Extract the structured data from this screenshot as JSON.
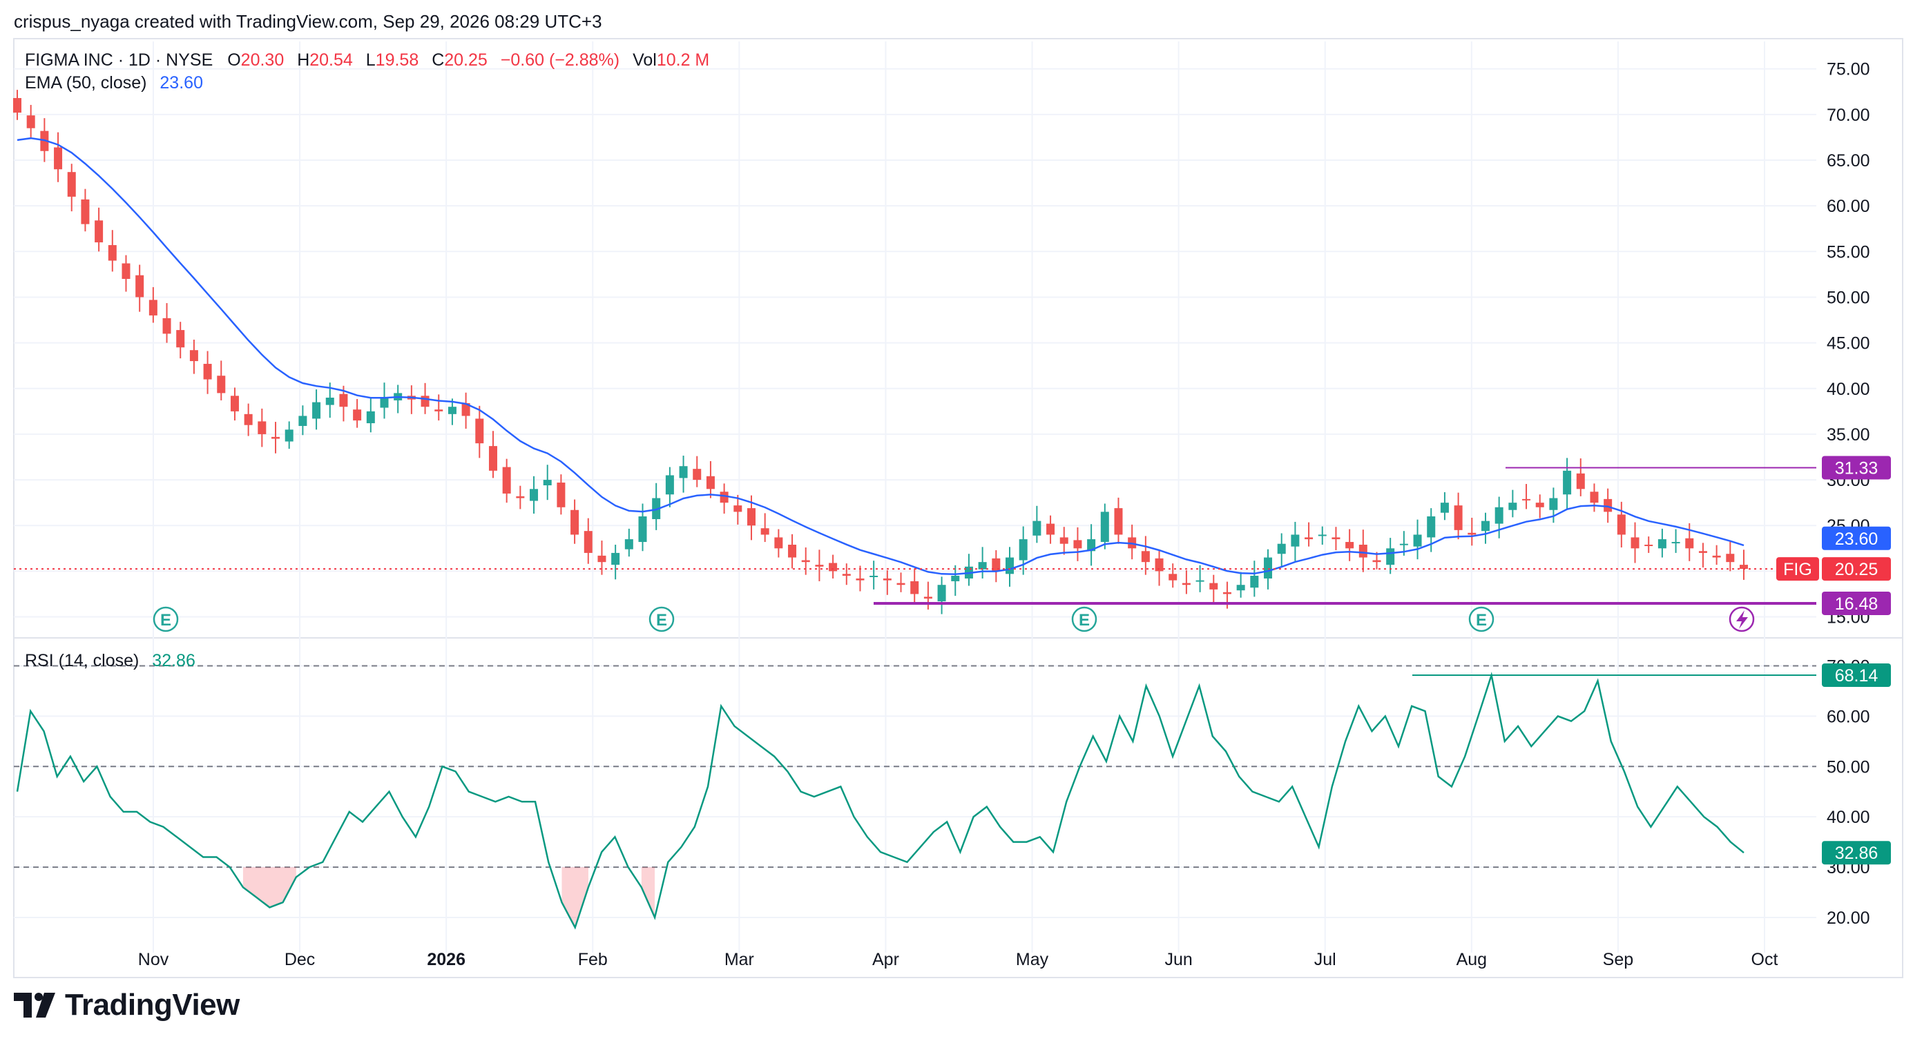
{
  "header": {
    "credit": "crispus_nyaga created with TradingView.com, Sep 29, 2026 08:29 UTC+3"
  },
  "legend": {
    "symbol": "FIGMA INC · 1D · NYSE",
    "o_label": "O",
    "o_value": "20.30",
    "h_label": "H",
    "h_value": "20.54",
    "l_label": "L",
    "l_value": "19.58",
    "c_label": "C",
    "c_value": "20.25",
    "change": "−0.60 (−2.88%)",
    "vol_label": "Vol",
    "vol_value": "10.2 M",
    "ema_label": "EMA (50, close)",
    "ema_value": "23.60",
    "rsi_label": "RSI (14, close)",
    "rsi_value": "32.86"
  },
  "colors": {
    "up": "#26a69a",
    "down": "#ef5350",
    "ema": "#2962ff",
    "rsi": "#089981",
    "level": "#9c27b0",
    "ticker_bg": "#f23645",
    "rsi_badge": "#089981",
    "grid": "#f0f3fa",
    "text": "#131722"
  },
  "chart_data": [
    {
      "type": "candlestick",
      "title": "FIGMA INC · 1D · NYSE",
      "ylim": [
        13,
        78
      ],
      "y_ticks": [
        "15.00",
        "20.00",
        "25.00",
        "30.00",
        "35.00",
        "40.00",
        "45.00",
        "50.00",
        "55.00",
        "60.00",
        "65.00",
        "70.00",
        "75.00"
      ],
      "x_ticks": [
        "Nov",
        "Dec",
        "2026",
        "Feb",
        "Mar",
        "Apr",
        "May",
        "Jun",
        "Jul",
        "Aug",
        "Sep",
        "Oct"
      ],
      "grid": true,
      "earnings_marker_label": "E",
      "ema_series_name": "EMA (50, close)",
      "last_price": 20.25,
      "ticker": "FIG",
      "price_labels": {
        "resistance": "31.33",
        "ema": "23.60",
        "last": "20.25",
        "support": "16.48"
      },
      "levels": {
        "resistance": 31.33,
        "support": 16.48
      },
      "ohlc_close_path": [
        70.2,
        68.5,
        66.0,
        64.0,
        61.0,
        58.0,
        56.0,
        54.0,
        52.0,
        50.0,
        48.0,
        46.0,
        44.5,
        43.0,
        41.0,
        39.5,
        37.5,
        36.0,
        35.0,
        34.5,
        35.5,
        37.0,
        38.5,
        39.0,
        38.0,
        36.5,
        37.5,
        39.0,
        39.5,
        38.8,
        38.0,
        37.5,
        38.0,
        37.0,
        34.0,
        31.0,
        28.5,
        28.0,
        29.0,
        30.0,
        27.0,
        24.0,
        22.0,
        21.0,
        22.0,
        23.5,
        26.0,
        28.0,
        30.5,
        31.5,
        30.0,
        29.0,
        27.5,
        26.5,
        25.0,
        24.0,
        22.5,
        21.5,
        21.0,
        20.5,
        20.0,
        19.5,
        19.0,
        19.5,
        19.0,
        18.5,
        17.5,
        17.0,
        18.5,
        19.5,
        20.5,
        21.0,
        20.0,
        21.5,
        23.5,
        25.5,
        24.0,
        23.0,
        22.5,
        23.5,
        26.5,
        24.0,
        22.5,
        21.0,
        20.0,
        19.0,
        18.5,
        19.0,
        18.0,
        17.5,
        18.5,
        19.5,
        21.5,
        23.0,
        24.0,
        23.5,
        24.0,
        23.5,
        22.5,
        21.5,
        21.0,
        22.5,
        23.0,
        24.0,
        26.0,
        27.5,
        24.5,
        24.0,
        25.5,
        27.0,
        27.5,
        27.8,
        27.0,
        28.0,
        31.0,
        29.0,
        27.5,
        26.5,
        24.0,
        22.5,
        22.8,
        23.5,
        23.2,
        22.5,
        22.0,
        21.5,
        21.0,
        20.25
      ]
    },
    {
      "type": "line",
      "title": "RSI (14, close)",
      "ylim": [
        13,
        75
      ],
      "y_ticks": [
        "20.00",
        "30.00",
        "40.00",
        "50.00",
        "60.00",
        "70.00"
      ],
      "levels": [
        30,
        50,
        70
      ],
      "last_value": "32.86",
      "peak_label": "68.14",
      "peak_value": 68.14,
      "values": [
        45,
        61,
        57,
        48,
        52,
        47,
        50,
        44,
        41,
        41,
        39,
        38,
        36,
        34,
        32,
        32,
        30,
        26,
        24,
        22,
        23,
        28,
        30,
        31,
        36,
        41,
        39,
        42,
        45,
        40,
        36,
        42,
        50,
        49,
        45,
        44,
        43,
        44,
        43,
        43,
        31,
        23,
        18,
        26,
        33,
        36,
        30,
        26,
        20,
        31,
        34,
        38,
        46,
        62,
        58,
        56,
        54,
        52,
        49,
        45,
        44,
        45,
        46,
        40,
        36,
        33,
        32,
        31,
        34,
        37,
        39,
        33,
        40,
        42,
        38,
        35,
        35,
        36,
        33,
        43,
        50,
        56,
        51,
        60,
        55,
        66,
        60,
        52,
        59,
        66,
        56,
        53,
        48,
        45,
        44,
        43,
        46,
        40,
        34,
        46,
        55,
        62,
        57,
        60,
        54,
        62,
        61,
        48,
        46,
        52,
        60,
        68.14,
        55,
        58,
        54,
        57,
        60,
        59,
        61,
        67,
        55,
        49,
        42,
        38,
        42,
        46,
        43,
        40,
        38,
        35,
        32.86
      ],
      "oversold_fill": true
    }
  ]
}
